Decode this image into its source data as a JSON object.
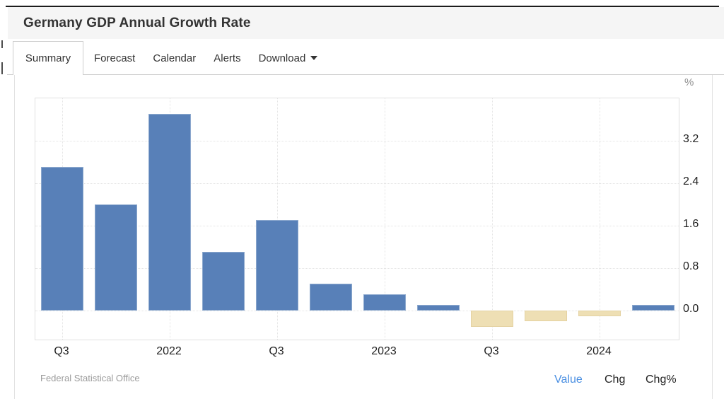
{
  "header": {
    "title": "Germany GDP Annual Growth Rate"
  },
  "tabs": [
    {
      "label": "Summary",
      "active": true
    },
    {
      "label": "Forecast",
      "active": false
    },
    {
      "label": "Calendar",
      "active": false
    },
    {
      "label": "Alerts",
      "active": false
    },
    {
      "label": "Download",
      "active": false,
      "has_dropdown": true
    }
  ],
  "chart_data": {
    "type": "bar",
    "title": "Germany GDP Annual Growth Rate",
    "unit_label": "%",
    "categories": [
      "2021 Q3",
      "2021 Q4",
      "2022 Q1",
      "2022 Q2",
      "2022 Q3",
      "2022 Q4",
      "2023 Q1",
      "2023 Q2",
      "2023 Q3",
      "2023 Q4",
      "2024 Q1",
      "2024 Q2"
    ],
    "values": [
      2.7,
      2.0,
      3.7,
      1.1,
      1.7,
      0.5,
      0.3,
      0.1,
      -0.3,
      -0.2,
      -0.1,
      0.1
    ],
    "x_ticks": [
      {
        "slot": 0,
        "label": "Q3"
      },
      {
        "slot": 2,
        "label": "2022"
      },
      {
        "slot": 4,
        "label": "Q3"
      },
      {
        "slot": 6,
        "label": "2023"
      },
      {
        "slot": 8,
        "label": "Q3"
      },
      {
        "slot": 10,
        "label": "2024"
      }
    ],
    "y_ticks": [
      3.2,
      2.4,
      1.6,
      0.8,
      0.0
    ],
    "ylim": [
      -0.57,
      4.0
    ],
    "grid": true,
    "legend": "none",
    "colors": {
      "positive": "#5880b8",
      "positive_border": "#8da9ce",
      "negative": "#eedfb4",
      "negative_border": "#e4d2a2"
    }
  },
  "footer": {
    "source": "Federal Statistical Office",
    "links": [
      {
        "label": "Value",
        "active": true,
        "color": "#4a8fe2"
      },
      {
        "label": "Chg",
        "active": false,
        "color": "#222222"
      },
      {
        "label": "Chg%",
        "active": false,
        "color": "#222222"
      }
    ]
  }
}
